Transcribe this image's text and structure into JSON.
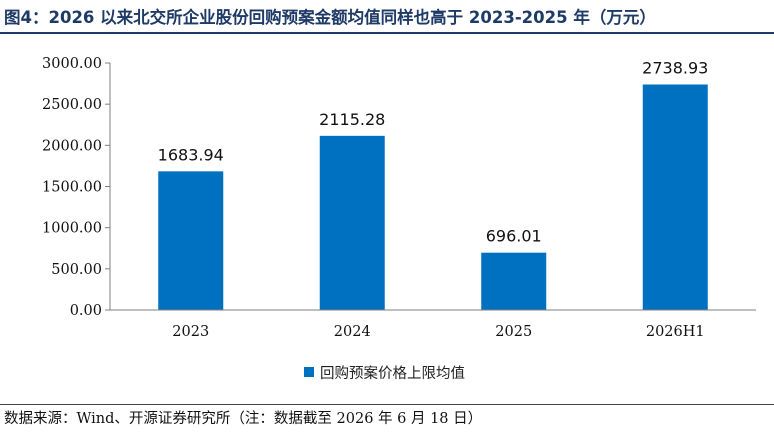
{
  "title": "图4：2026 以来北交所企业股份回购预案金额均值同样也高于 2023-2025 年（万元）",
  "source": "数据来源：Wind、开源证券研究所（注：数据截至 2026 年 6 月 18 日）",
  "colors": {
    "bar": "#0070c0",
    "title": "#1e3a66",
    "axis": "#7f7f7f"
  },
  "chart_data": {
    "type": "bar",
    "categories": [
      "2023",
      "2024",
      "2025",
      "2026H1"
    ],
    "series": [
      {
        "name": "回购预案价格上限均值",
        "values": [
          1683.94,
          2115.28,
          696.01,
          2738.93
        ]
      }
    ],
    "value_labels": [
      "1683.94",
      "2115.28",
      "696.01",
      "2738.93"
    ],
    "yticks": [
      "0.00",
      "500.00",
      "1000.00",
      "1500.00",
      "2000.00",
      "2500.00",
      "3000.00"
    ],
    "ylim": [
      0,
      3000
    ],
    "grid": false,
    "legend_position": "bottom",
    "xlabel": "",
    "ylabel": ""
  }
}
